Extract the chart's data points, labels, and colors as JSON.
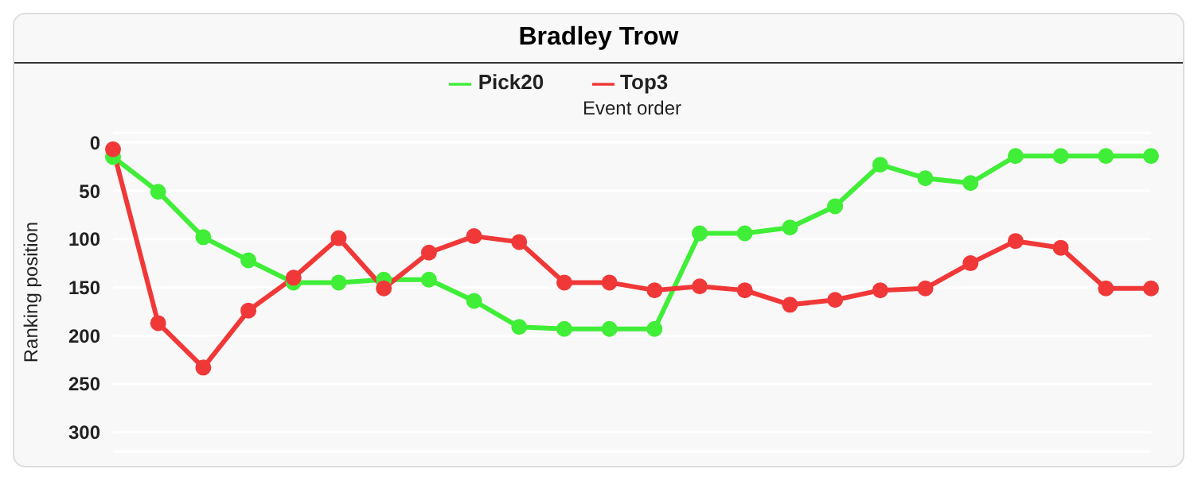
{
  "chart_data": {
    "type": "line",
    "title": "Bradley Trow",
    "xlabel": "Event order",
    "ylabel": "Ranking position",
    "categories": [
      null,
      null,
      null,
      null,
      null,
      null,
      null,
      null,
      null,
      null,
      null,
      null,
      null,
      null,
      null,
      null,
      null,
      null,
      null,
      null,
      null,
      null,
      null,
      null
    ],
    "series": [
      {
        "name": "Top3",
        "color": "#f03838",
        "values": [
          7,
          187,
          233,
          174,
          140,
          99,
          151,
          114,
          97,
          103,
          145,
          145,
          153,
          149,
          153,
          168,
          163,
          153,
          151,
          125,
          102,
          109,
          151,
          151
        ]
      },
      {
        "name": "Pick20",
        "color": "#40ee38",
        "values": [
          15,
          51,
          98,
          122,
          145,
          145,
          142,
          142,
          164,
          191,
          193,
          193,
          193,
          94,
          94,
          88,
          66,
          23,
          37,
          42,
          14,
          14,
          14,
          14
        ]
      }
    ],
    "ylim": [
      320,
      -10
    ],
    "yticks": [
      0,
      50,
      100,
      150,
      200,
      250,
      300
    ],
    "grid": "y",
    "legend": "top",
    "marker": "circle",
    "line_style": "solid",
    "tick_labels": "y"
  }
}
